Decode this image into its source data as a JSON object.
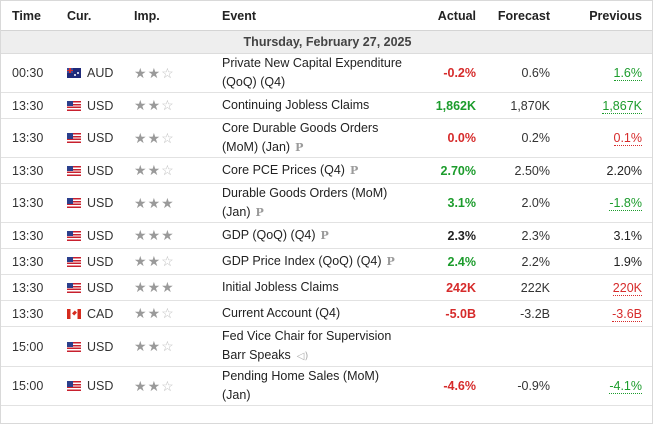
{
  "headers": {
    "time": "Time",
    "currency": "Cur.",
    "importance": "Imp.",
    "event": "Event",
    "actual": "Actual",
    "forecast": "Forecast",
    "previous": "Previous"
  },
  "date_label": "Thursday, February 27, 2025",
  "colors": {
    "positive": "#1c9c2c",
    "negative": "#d62b2b",
    "neutral": "#222222"
  },
  "events": [
    {
      "time": "00:30",
      "flag": "australia-flag-icon",
      "currency": "AUD",
      "importance": 2,
      "event_line1": "Private New Capital Expenditure",
      "event_line2": "(QoQ) (Q4)",
      "icon": "",
      "actual": "-0.2%",
      "actual_status": "negative",
      "forecast": "0.6%",
      "previous": "1.6%",
      "previous_status": "positive",
      "previous_revised": true
    },
    {
      "time": "13:30",
      "flag": "us-flag-icon",
      "currency": "USD",
      "importance": 2,
      "event_line1": "Continuing Jobless Claims",
      "event_line2": "",
      "icon": "",
      "actual": "1,862K",
      "actual_status": "positive",
      "forecast": "1,870K",
      "previous": "1,867K",
      "previous_status": "positive",
      "previous_revised": true
    },
    {
      "time": "13:30",
      "flag": "us-flag-icon",
      "currency": "USD",
      "importance": 2,
      "event_line1": "Core Durable Goods Orders",
      "event_line2": "(MoM) (Jan)",
      "icon": "preliminary-icon",
      "actual": "0.0%",
      "actual_status": "negative",
      "forecast": "0.2%",
      "previous": "0.1%",
      "previous_status": "negative",
      "previous_revised": true
    },
    {
      "time": "13:30",
      "flag": "us-flag-icon",
      "currency": "USD",
      "importance": 2,
      "event_line1": "Core PCE Prices (Q4)",
      "event_line2": "",
      "icon": "preliminary-icon",
      "actual": "2.70%",
      "actual_status": "positive",
      "forecast": "2.50%",
      "previous": "2.20%",
      "previous_status": "neutral",
      "previous_revised": false
    },
    {
      "time": "13:30",
      "flag": "us-flag-icon",
      "currency": "USD",
      "importance": 3,
      "event_line1": "Durable Goods Orders (MoM)",
      "event_line2": "(Jan)",
      "icon": "preliminary-icon",
      "actual": "3.1%",
      "actual_status": "positive",
      "forecast": "2.0%",
      "previous": "-1.8%",
      "previous_status": "positive",
      "previous_revised": true
    },
    {
      "time": "13:30",
      "flag": "us-flag-icon",
      "currency": "USD",
      "importance": 3,
      "event_line1": "GDP (QoQ) (Q4)",
      "event_line2": "",
      "icon": "preliminary-icon",
      "actual": "2.3%",
      "actual_status": "neutral",
      "forecast": "2.3%",
      "previous": "3.1%",
      "previous_status": "neutral",
      "previous_revised": false
    },
    {
      "time": "13:30",
      "flag": "us-flag-icon",
      "currency": "USD",
      "importance": 2,
      "event_line1": "GDP Price Index (QoQ) (Q4)",
      "event_line2": "",
      "icon": "preliminary-icon",
      "actual": "2.4%",
      "actual_status": "positive",
      "forecast": "2.2%",
      "previous": "1.9%",
      "previous_status": "neutral",
      "previous_revised": false
    },
    {
      "time": "13:30",
      "flag": "us-flag-icon",
      "currency": "USD",
      "importance": 3,
      "event_line1": "Initial Jobless Claims",
      "event_line2": "",
      "icon": "",
      "actual": "242K",
      "actual_status": "negative",
      "forecast": "222K",
      "previous": "220K",
      "previous_status": "negative",
      "previous_revised": true
    },
    {
      "time": "13:30",
      "flag": "canada-flag-icon",
      "currency": "CAD",
      "importance": 2,
      "event_line1": "Current Account (Q4)",
      "event_line2": "",
      "icon": "",
      "actual": "-5.0B",
      "actual_status": "negative",
      "forecast": "-3.2B",
      "previous": "-3.6B",
      "previous_status": "negative",
      "previous_revised": true
    },
    {
      "time": "15:00",
      "flag": "us-flag-icon",
      "currency": "USD",
      "importance": 2,
      "event_line1": "Fed Vice Chair for Supervision",
      "event_line2": "Barr Speaks",
      "icon": "speaker-icon",
      "actual": "",
      "actual_status": "neutral",
      "forecast": "",
      "previous": "",
      "previous_status": "neutral",
      "previous_revised": false
    },
    {
      "time": "15:00",
      "flag": "us-flag-icon",
      "currency": "USD",
      "importance": 2,
      "event_line1": "Pending Home Sales (MoM)",
      "event_line2": "(Jan)",
      "icon": "",
      "actual": "-4.6%",
      "actual_status": "negative",
      "forecast": "-0.9%",
      "previous": "-4.1%",
      "previous_status": "positive",
      "previous_revised": true
    }
  ]
}
